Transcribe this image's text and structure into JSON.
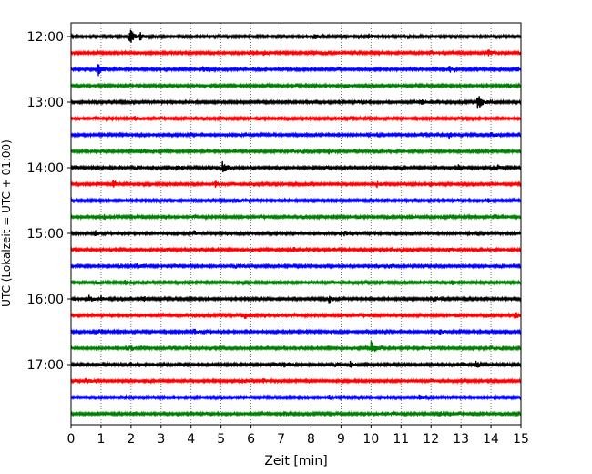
{
  "chart_data": {
    "type": "line",
    "title": "",
    "xlabel": "Zeit  [min]",
    "ylabel": "UTC (Lokalzeit = UTC + 01:00)",
    "xlim": [
      0,
      15
    ],
    "x_ticks": [
      "0",
      "1",
      "2",
      "3",
      "4",
      "5",
      "6",
      "7",
      "8",
      "9",
      "10",
      "11",
      "12",
      "13",
      "14",
      "15"
    ],
    "y_ticks": [
      "12:00",
      "13:00",
      "14:00",
      "15:00",
      "16:00",
      "17:00"
    ],
    "trace_interval_minutes": 15,
    "first_trace": "12:00",
    "last_trace": "17:45",
    "grid": {
      "vertical": true,
      "style": "dotted"
    },
    "trace_colors": [
      "#000000",
      "#ff0000",
      "#0000ff",
      "#008000"
    ],
    "traces": [
      {
        "time": "12:00",
        "color": "#000000",
        "events": [
          {
            "t": 1.95,
            "amp": 1.0
          },
          {
            "t": 2.3,
            "amp": 0.45
          },
          {
            "t": 8.1,
            "amp": 0.3
          },
          {
            "t": 9.9,
            "amp": 0.3
          }
        ]
      },
      {
        "time": "12:15",
        "color": "#ff0000",
        "events": [
          {
            "t": 6.4,
            "amp": 0.35
          },
          {
            "t": 13.9,
            "amp": 0.4
          }
        ]
      },
      {
        "time": "12:30",
        "color": "#0000ff",
        "events": [
          {
            "t": 0.9,
            "amp": 0.75
          },
          {
            "t": 4.4,
            "amp": 0.35
          },
          {
            "t": 12.4,
            "amp": 0.3
          },
          {
            "t": 12.6,
            "amp": 0.3
          }
        ]
      },
      {
        "time": "12:45",
        "color": "#008000",
        "events": [
          {
            "t": 9.1,
            "amp": 0.3
          },
          {
            "t": 14.6,
            "amp": 0.25
          }
        ]
      },
      {
        "time": "13:00",
        "color": "#000000",
        "events": [
          {
            "t": 11.7,
            "amp": 0.35
          },
          {
            "t": 13.55,
            "amp": 1.0
          }
        ]
      },
      {
        "time": "13:15",
        "color": "#ff0000",
        "events": [
          {
            "t": 2.1,
            "amp": 0.25
          },
          {
            "t": 13.1,
            "amp": 0.25
          }
        ]
      },
      {
        "time": "13:30",
        "color": "#0000ff",
        "events": [
          {
            "t": 12.6,
            "amp": 0.45
          },
          {
            "t": 14.0,
            "amp": 0.3
          }
        ]
      },
      {
        "time": "13:45",
        "color": "#008000",
        "events": [
          {
            "t": 2.3,
            "amp": 0.25
          },
          {
            "t": 8.6,
            "amp": 0.25
          }
        ]
      },
      {
        "time": "14:00",
        "color": "#000000",
        "events": [
          {
            "t": 3.5,
            "amp": 0.4
          },
          {
            "t": 5.05,
            "amp": 0.85
          },
          {
            "t": 12.9,
            "amp": 0.35
          },
          {
            "t": 14.2,
            "amp": 0.35
          }
        ]
      },
      {
        "time": "14:15",
        "color": "#ff0000",
        "events": [
          {
            "t": 1.4,
            "amp": 0.5
          },
          {
            "t": 4.8,
            "amp": 0.35
          },
          {
            "t": 10.2,
            "amp": 0.35
          },
          {
            "t": 12.0,
            "amp": 0.3
          }
        ]
      },
      {
        "time": "14:30",
        "color": "#0000ff",
        "events": [
          {
            "t": 5.5,
            "amp": 0.3
          },
          {
            "t": 13.9,
            "amp": 0.25
          }
        ]
      },
      {
        "time": "14:45",
        "color": "#008000",
        "events": [
          {
            "t": 1.1,
            "amp": 0.25
          },
          {
            "t": 11.2,
            "amp": 0.3
          },
          {
            "t": 14.1,
            "amp": 0.3
          }
        ]
      },
      {
        "time": "15:00",
        "color": "#000000",
        "events": [
          {
            "t": 0.8,
            "amp": 0.3
          },
          {
            "t": 4.1,
            "amp": 0.3
          },
          {
            "t": 9.1,
            "amp": 0.3
          }
        ]
      },
      {
        "time": "15:15",
        "color": "#ff0000",
        "events": [
          {
            "t": 3.1,
            "amp": 0.3
          },
          {
            "t": 7.4,
            "amp": 0.3
          },
          {
            "t": 12.6,
            "amp": 0.3
          }
        ]
      },
      {
        "time": "15:30",
        "color": "#0000ff",
        "events": [
          {
            "t": 2.2,
            "amp": 0.3
          },
          {
            "t": 5.7,
            "amp": 0.25
          },
          {
            "t": 10.6,
            "amp": 0.25
          }
        ]
      },
      {
        "time": "15:45",
        "color": "#008000",
        "events": [
          {
            "t": 0.8,
            "amp": 0.3
          },
          {
            "t": 1.8,
            "amp": 0.3
          },
          {
            "t": 12.7,
            "amp": 0.25
          }
        ]
      },
      {
        "time": "16:00",
        "color": "#000000",
        "events": [
          {
            "t": 0.6,
            "amp": 0.45
          },
          {
            "t": 1.0,
            "amp": 0.35
          },
          {
            "t": 2.4,
            "amp": 0.35
          },
          {
            "t": 8.6,
            "amp": 0.4
          },
          {
            "t": 12.1,
            "amp": 0.3
          }
        ]
      },
      {
        "time": "16:15",
        "color": "#ff0000",
        "events": [
          {
            "t": 5.8,
            "amp": 0.4
          },
          {
            "t": 14.8,
            "amp": 0.4
          }
        ]
      },
      {
        "time": "16:30",
        "color": "#0000ff",
        "events": [
          {
            "t": 4.1,
            "amp": 0.25
          },
          {
            "t": 12.3,
            "amp": 0.25
          }
        ]
      },
      {
        "time": "16:45",
        "color": "#008000",
        "events": [
          {
            "t": 2.0,
            "amp": 0.3
          },
          {
            "t": 10.0,
            "amp": 1.0
          },
          {
            "t": 11.7,
            "amp": 0.25
          }
        ]
      },
      {
        "time": "17:00",
        "color": "#000000",
        "events": [
          {
            "t": 7.1,
            "amp": 0.35
          },
          {
            "t": 9.3,
            "amp": 0.35
          },
          {
            "t": 13.0,
            "amp": 0.35
          },
          {
            "t": 13.5,
            "amp": 0.35
          }
        ]
      },
      {
        "time": "17:15",
        "color": "#ff0000",
        "events": [
          {
            "t": 0.5,
            "amp": 0.3
          },
          {
            "t": 6.4,
            "amp": 0.25
          }
        ]
      },
      {
        "time": "17:30",
        "color": "#0000ff",
        "events": [
          {
            "t": 8.6,
            "amp": 0.25
          },
          {
            "t": 11.6,
            "amp": 0.25
          }
        ]
      },
      {
        "time": "17:45",
        "color": "#008000",
        "events": [
          {
            "t": 7.1,
            "amp": 0.25
          },
          {
            "t": 12.3,
            "amp": 0.25
          }
        ]
      }
    ]
  }
}
